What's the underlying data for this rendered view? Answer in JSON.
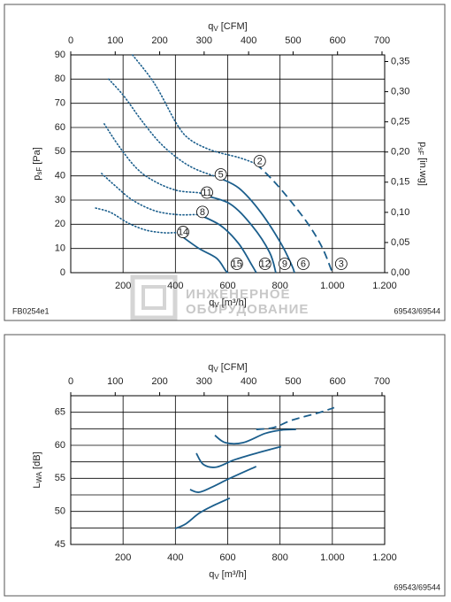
{
  "chart_data": [
    {
      "type": "line",
      "code": "FB0254e1",
      "ref": "69543/69544",
      "color": "#1b5e8c",
      "x_label": {
        "symbol": "q",
        "subscript": "V",
        "unit": "[m³/h]"
      },
      "x2_label": {
        "symbol": "q",
        "subscript": "V",
        "unit": "[CFM]"
      },
      "y_label": {
        "symbol": "p",
        "subscript": "sF",
        "unit": "[Pa]"
      },
      "y2_label": {
        "symbol": "p",
        "subscript": "sF",
        "unit": "[in.wg]"
      },
      "xlim": [
        0,
        1200
      ],
      "xticks": [
        200,
        400,
        600,
        800,
        {
          "value": 1000,
          "label": "1.000"
        },
        {
          "value": 1200,
          "label": "1.200"
        }
      ],
      "x2lim": [
        0,
        706
      ],
      "x2ticks": [
        0,
        100,
        200,
        300,
        400,
        500,
        600,
        700
      ],
      "ylim": [
        0,
        90
      ],
      "yticks": [
        0,
        10,
        20,
        30,
        40,
        50,
        60,
        70,
        80,
        90
      ],
      "y2lim": [
        0,
        0.361
      ],
      "y2ticks": [
        {
          "value": 0,
          "label": "0,00"
        },
        {
          "value": 0.05,
          "label": "0,05"
        },
        {
          "value": 0.1,
          "label": "0,10"
        },
        {
          "value": 0.15,
          "label": "0,15"
        },
        {
          "value": 0.2,
          "label": "0,20"
        },
        {
          "value": 0.25,
          "label": "0,25"
        },
        {
          "value": 0.3,
          "label": "0,30"
        },
        {
          "value": 0.35,
          "label": "0,35"
        }
      ],
      "grid": true,
      "series": [
        {
          "style": "dotted",
          "x": [
            236,
            321,
            405,
            456,
            540,
            642,
            709
          ],
          "values": [
            90,
            78,
            61.5,
            55,
            50.5,
            47.6,
            45
          ]
        },
        {
          "style": "dashed",
          "start_label": "2",
          "end_label": "3",
          "x": [
            709,
            777,
            845,
            912,
            963,
            1000
          ],
          "values": [
            45,
            37.7,
            29,
            19.4,
            10,
            0
          ]
        },
        {
          "style": "dotted",
          "x": [
            145,
            203,
            270,
            338,
            405,
            473,
            560
          ],
          "values": [
            80,
            73,
            63,
            54,
            47.6,
            43,
            39.5
          ]
        },
        {
          "style": "solid",
          "start_label": "5",
          "end_label": "6",
          "x": [
            560,
            642,
            726,
            804,
            845,
            855
          ],
          "values": [
            39.5,
            35,
            25,
            12,
            3,
            0
          ]
        },
        {
          "style": "dotted",
          "x": [
            128,
            186,
            253,
            321,
            405,
            490,
            507
          ],
          "values": [
            61.5,
            52,
            43,
            37.7,
            34,
            33,
            32
          ]
        },
        {
          "style": "solid",
          "start_label": "11",
          "end_label": "9",
          "x": [
            507,
            608,
            693,
            760,
            784
          ],
          "values": [
            32,
            28.5,
            19.4,
            8.4,
            0
          ]
        },
        {
          "style": "dotted",
          "x": [
            118,
            169,
            236,
            321,
            405,
            473,
            490
          ],
          "values": [
            41,
            36,
            30,
            25.6,
            24,
            24,
            24
          ]
        },
        {
          "style": "solid",
          "start_label": "8",
          "end_label": "12",
          "x": [
            490,
            574,
            642,
            693,
            709
          ],
          "values": [
            24,
            19.4,
            12,
            3,
            0
          ]
        },
        {
          "style": "dotted",
          "x": [
            95,
            152,
            220,
            287,
            355,
            405,
            416
          ],
          "values": [
            26.7,
            24.9,
            20.5,
            17.6,
            16.5,
            16.5,
            15.7
          ]
        },
        {
          "style": "solid",
          "start_label": "14",
          "end_label": "15",
          "x": [
            416,
            490,
            557,
            591,
            601
          ],
          "values": [
            15.7,
            10,
            6,
            1,
            0
          ]
        }
      ]
    },
    {
      "type": "line",
      "ref": "69543/69544",
      "color": "#1b5e8c",
      "x_label": {
        "symbol": "q",
        "subscript": "V",
        "unit": "[m³/h]"
      },
      "x2_label": {
        "symbol": "q",
        "subscript": "V",
        "unit": "[CFM]"
      },
      "y_label": {
        "symbol": "L",
        "subscript": "WA",
        "unit": "[dB]"
      },
      "xlim": [
        0,
        1200
      ],
      "xticks": [
        200,
        400,
        600,
        800,
        {
          "value": 1000,
          "label": "1.000"
        },
        {
          "value": 1200,
          "label": "1.200"
        }
      ],
      "x2lim": [
        0,
        706
      ],
      "x2ticks": [
        0,
        100,
        200,
        300,
        400,
        500,
        600,
        700
      ],
      "ylim": [
        45,
        67.5
      ],
      "yticks": [
        45,
        50,
        55,
        60,
        65
      ],
      "minor_yticks": [
        47.5,
        52.5,
        57.5,
        62.5
      ],
      "grid": true,
      "series": [
        {
          "style": "solid",
          "x": [
            399,
            439,
            490,
            541,
            608
          ],
          "values": [
            47.4,
            48.1,
            49.7,
            50.8,
            52
          ]
        },
        {
          "style": "solid",
          "x": [
            456,
            490,
            541,
            608,
            709
          ],
          "values": [
            53.3,
            52.9,
            53.7,
            55,
            56.8
          ]
        },
        {
          "style": "solid",
          "x": [
            480,
            507,
            557,
            625,
            709,
            804
          ],
          "values": [
            58.8,
            57.1,
            56.7,
            57.8,
            58.8,
            59.8
          ]
        },
        {
          "style": "solid",
          "x": [
            551,
            591,
            659,
            743,
            804,
            861
          ],
          "values": [
            61.5,
            60.4,
            60.4,
            61.8,
            62.3,
            62.4
          ]
        },
        {
          "style": "dashed",
          "x": [
            709,
            777,
            845,
            946,
            1007
          ],
          "values": [
            62.4,
            62.7,
            63.8,
            64.9,
            65.7
          ]
        }
      ]
    }
  ],
  "watermark": [
    "ИНЖЕНЕРНОЕ",
    "ОБОРУДОВАНИЕ"
  ]
}
